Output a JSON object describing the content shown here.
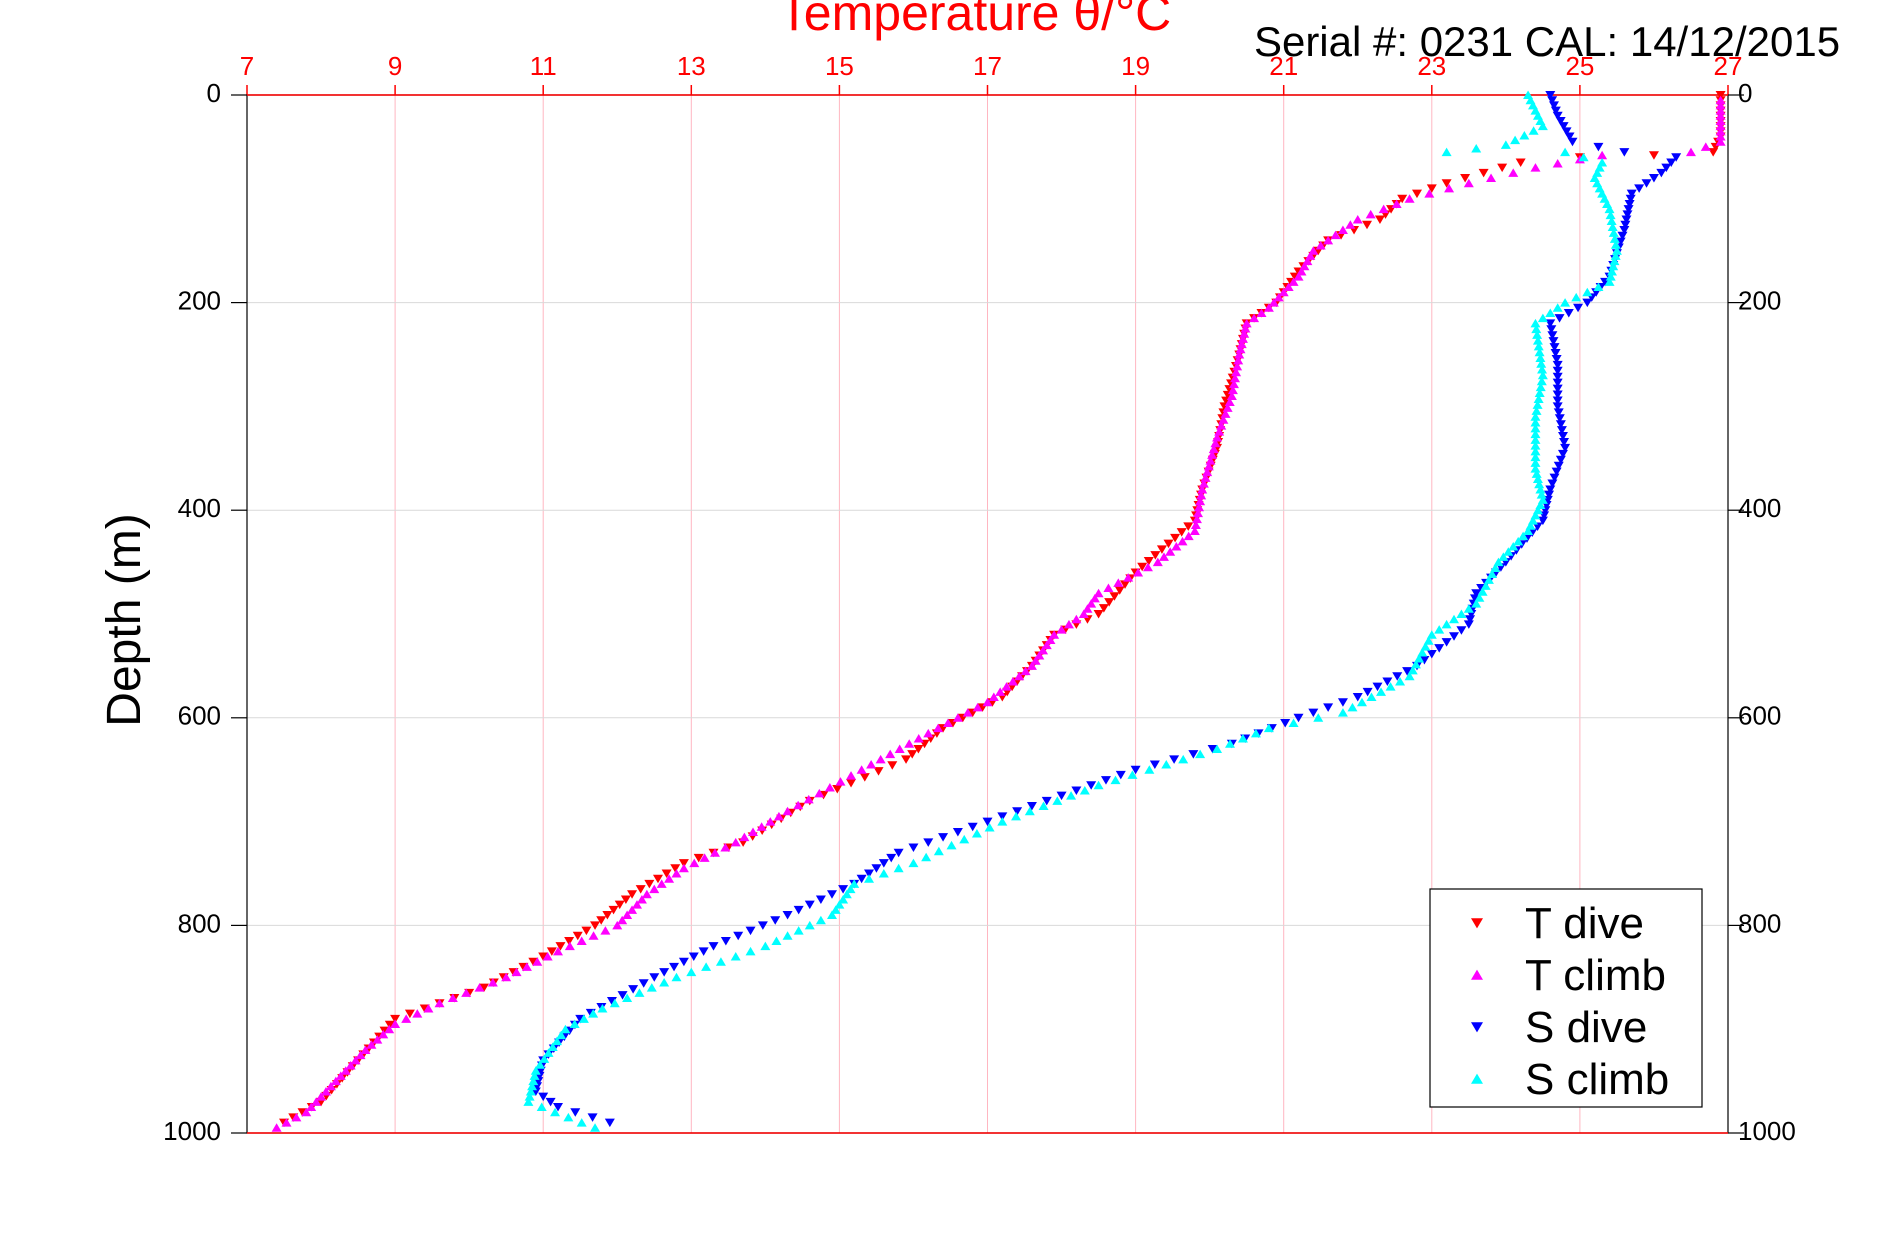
{
  "chart_data": {
    "type": "scatter",
    "title": "Temperature θ/°C",
    "subtitle": "Serial #: 0231  CAL: 14/12/2015",
    "xlabel": "Temperature θ/°C",
    "ylabel": "Depth (m)",
    "xlim": [
      7,
      27
    ],
    "ylim": [
      0,
      1000
    ],
    "y_reversed": true,
    "x_ticks": [
      "7",
      "9",
      "11",
      "13",
      "15",
      "17",
      "19",
      "21",
      "23",
      "25",
      "27"
    ],
    "y_ticks": [
      "0",
      "200",
      "400",
      "600",
      "800",
      "1000"
    ],
    "grid": true,
    "legend_position": "bottom-right",
    "colors": {
      "axis_top": "#ff0000",
      "grid_x": "#ffb6c1",
      "grid_y": "#d9d9d9"
    },
    "series": [
      {
        "name": "T dive",
        "marker": "triangle-down",
        "color": "#ff0000",
        "points": [
          [
            26.9,
            0
          ],
          [
            26.9,
            20
          ],
          [
            26.9,
            40
          ],
          [
            26.8,
            55
          ],
          [
            26.0,
            58
          ],
          [
            25.0,
            60
          ],
          [
            24.2,
            65
          ],
          [
            23.7,
            75
          ],
          [
            23.2,
            85
          ],
          [
            22.6,
            100
          ],
          [
            22.3,
            120
          ],
          [
            21.6,
            140
          ],
          [
            21.2,
            170
          ],
          [
            20.9,
            200
          ],
          [
            20.5,
            220
          ],
          [
            20.4,
            250
          ],
          [
            20.2,
            300
          ],
          [
            20.1,
            340
          ],
          [
            19.9,
            380
          ],
          [
            19.8,
            410
          ],
          [
            19.0,
            460
          ],
          [
            18.5,
            500
          ],
          [
            17.9,
            520
          ],
          [
            17.6,
            550
          ],
          [
            17.2,
            580
          ],
          [
            16.4,
            610
          ],
          [
            15.9,
            640
          ],
          [
            14.6,
            680
          ],
          [
            13.7,
            720
          ],
          [
            12.9,
            740
          ],
          [
            12.2,
            770
          ],
          [
            11.7,
            800
          ],
          [
            11.0,
            830
          ],
          [
            10.2,
            860
          ],
          [
            9.0,
            890
          ],
          [
            8.5,
            930
          ],
          [
            8.0,
            970
          ],
          [
            7.5,
            990
          ]
        ]
      },
      {
        "name": "T climb",
        "marker": "triangle-up",
        "color": "#ff00ff",
        "points": [
          [
            7.4,
            995
          ],
          [
            7.8,
            980
          ],
          [
            8.2,
            950
          ],
          [
            8.6,
            920
          ],
          [
            9.0,
            895
          ],
          [
            9.6,
            875
          ],
          [
            10.5,
            850
          ],
          [
            11.2,
            825
          ],
          [
            12.0,
            800
          ],
          [
            12.4,
            770
          ],
          [
            12.9,
            745
          ],
          [
            13.6,
            720
          ],
          [
            14.3,
            690
          ],
          [
            15.3,
            650
          ],
          [
            16.2,
            615
          ],
          [
            17.0,
            585
          ],
          [
            17.6,
            550
          ],
          [
            17.9,
            520
          ],
          [
            18.3,
            500
          ],
          [
            18.5,
            480
          ],
          [
            19.3,
            450
          ],
          [
            19.8,
            420
          ],
          [
            19.9,
            380
          ],
          [
            20.1,
            330
          ],
          [
            20.3,
            290
          ],
          [
            20.4,
            250
          ],
          [
            20.5,
            220
          ],
          [
            20.8,
            205
          ],
          [
            21.2,
            175
          ],
          [
            21.4,
            150
          ],
          [
            22.0,
            120
          ],
          [
            22.7,
            100
          ],
          [
            23.5,
            85
          ],
          [
            24.4,
            70
          ],
          [
            25.3,
            58
          ],
          [
            26.5,
            55
          ],
          [
            26.9,
            45
          ],
          [
            26.9,
            25
          ],
          [
            26.9,
            5
          ]
        ]
      },
      {
        "name": "S dive",
        "marker": "triangle-down",
        "color": "#0000ff",
        "points": [
          [
            24.6,
            0
          ],
          [
            24.7,
            20
          ],
          [
            24.9,
            45
          ],
          [
            25.6,
            55
          ],
          [
            26.3,
            60
          ],
          [
            26.1,
            75
          ],
          [
            25.7,
            95
          ],
          [
            25.6,
            130
          ],
          [
            25.4,
            175
          ],
          [
            25.1,
            200
          ],
          [
            24.6,
            220
          ],
          [
            24.7,
            260
          ],
          [
            24.7,
            300
          ],
          [
            24.8,
            340
          ],
          [
            24.6,
            380
          ],
          [
            24.5,
            410
          ],
          [
            24.0,
            450
          ],
          [
            23.6,
            480
          ],
          [
            23.5,
            510
          ],
          [
            22.8,
            550
          ],
          [
            22.0,
            580
          ],
          [
            21.2,
            600
          ],
          [
            20.3,
            625
          ],
          [
            19.0,
            650
          ],
          [
            17.8,
            680
          ],
          [
            17.0,
            700
          ],
          [
            15.8,
            730
          ],
          [
            15.2,
            760
          ],
          [
            14.3,
            790
          ],
          [
            13.3,
            820
          ],
          [
            12.5,
            850
          ],
          [
            11.5,
            890
          ],
          [
            11.0,
            930
          ],
          [
            10.9,
            960
          ],
          [
            11.2,
            975
          ],
          [
            11.9,
            990
          ]
        ]
      },
      {
        "name": "S climb",
        "marker": "triangle-up",
        "color": "#00ffff",
        "points": [
          [
            11.7,
            995
          ],
          [
            10.8,
            970
          ],
          [
            10.9,
            940
          ],
          [
            11.3,
            900
          ],
          [
            11.8,
            880
          ],
          [
            12.8,
            850
          ],
          [
            14.0,
            820
          ],
          [
            14.9,
            790
          ],
          [
            15.2,
            760
          ],
          [
            16.0,
            740
          ],
          [
            17.2,
            700
          ],
          [
            18.5,
            665
          ],
          [
            20.1,
            630
          ],
          [
            20.8,
            610
          ],
          [
            21.8,
            595
          ],
          [
            22.7,
            560
          ],
          [
            23.0,
            520
          ],
          [
            23.6,
            490
          ],
          [
            23.9,
            450
          ],
          [
            24.3,
            420
          ],
          [
            24.5,
            390
          ],
          [
            24.4,
            360
          ],
          [
            24.4,
            310
          ],
          [
            24.5,
            270
          ],
          [
            24.4,
            220
          ],
          [
            24.8,
            200
          ],
          [
            25.4,
            180
          ],
          [
            25.5,
            150
          ],
          [
            25.4,
            110
          ],
          [
            25.2,
            80
          ],
          [
            25.3,
            65
          ],
          [
            24.8,
            55
          ],
          [
            23.2,
            55
          ],
          [
            24.0,
            48
          ],
          [
            24.5,
            30
          ],
          [
            24.3,
            0
          ]
        ]
      }
    ]
  }
}
